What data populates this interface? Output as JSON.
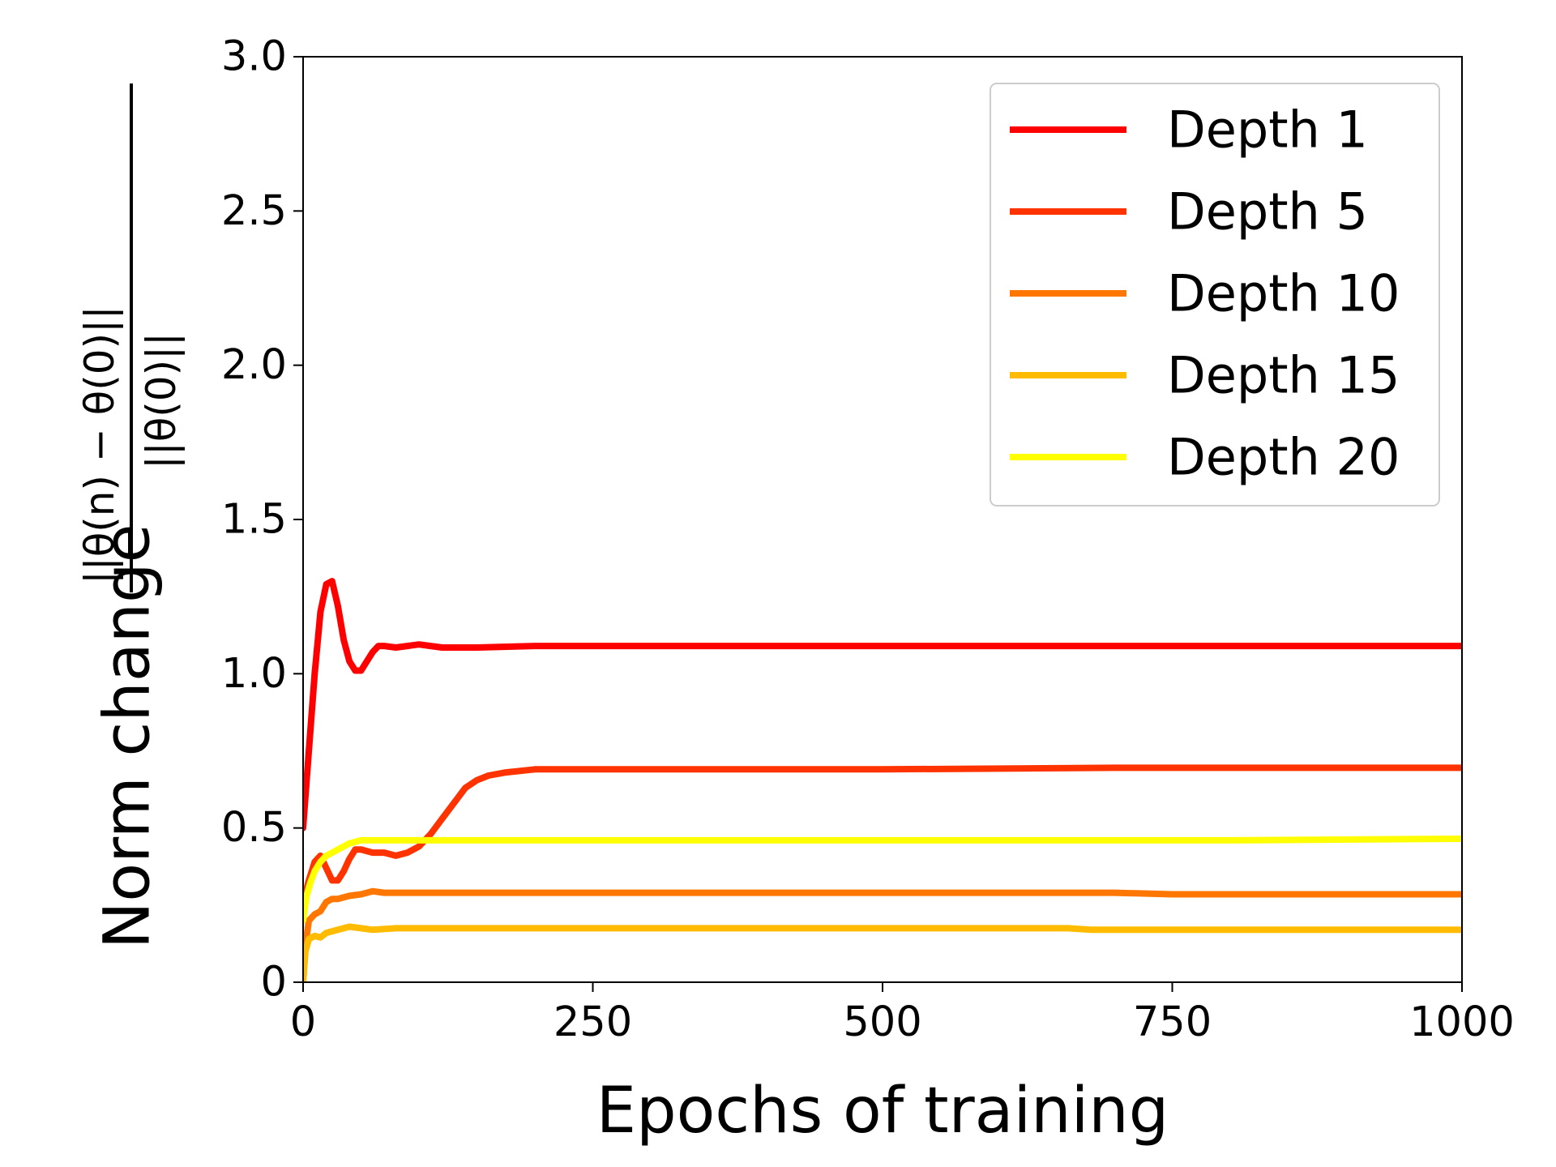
{
  "chart_data": {
    "type": "line",
    "xlabel": "Epochs of training",
    "ylabel_prefix": "Norm change",
    "ylabel_numerator": "||θ(n) − θ(0)||",
    "ylabel_denominator": "||θ(0)||",
    "xlim": [
      0,
      1000
    ],
    "ylim": [
      0,
      3.0
    ],
    "xticks": [
      0,
      250,
      500,
      750,
      1000
    ],
    "xtick_labels": [
      "0",
      "250",
      "500",
      "750",
      "1000"
    ],
    "yticks": [
      0,
      0.5,
      1.0,
      1.5,
      2.0,
      2.5,
      3.0
    ],
    "ytick_labels": [
      "0",
      "0.5",
      "1.0",
      "1.5",
      "2.0",
      "2.5",
      "3.0"
    ],
    "grid": false,
    "legend_position": "top-right",
    "series": [
      {
        "name": "Depth 1",
        "color": "#ff0000",
        "points": [
          [
            0,
            0.5
          ],
          [
            5,
            0.75
          ],
          [
            10,
            1.0
          ],
          [
            15,
            1.2
          ],
          [
            20,
            1.29
          ],
          [
            25,
            1.3
          ],
          [
            30,
            1.22
          ],
          [
            35,
            1.11
          ],
          [
            40,
            1.04
          ],
          [
            45,
            1.01
          ],
          [
            50,
            1.01
          ],
          [
            55,
            1.04
          ],
          [
            60,
            1.07
          ],
          [
            65,
            1.09
          ],
          [
            70,
            1.09
          ],
          [
            80,
            1.085
          ],
          [
            90,
            1.09
          ],
          [
            100,
            1.095
          ],
          [
            110,
            1.09
          ],
          [
            120,
            1.085
          ],
          [
            150,
            1.085
          ],
          [
            200,
            1.09
          ],
          [
            400,
            1.09
          ],
          [
            600,
            1.09
          ],
          [
            800,
            1.09
          ],
          [
            1000,
            1.09
          ]
        ]
      },
      {
        "name": "Depth 5",
        "color": "#ff3300",
        "points": [
          [
            0,
            0.26
          ],
          [
            5,
            0.33
          ],
          [
            10,
            0.39
          ],
          [
            15,
            0.41
          ],
          [
            20,
            0.37
          ],
          [
            25,
            0.33
          ],
          [
            30,
            0.33
          ],
          [
            35,
            0.36
          ],
          [
            40,
            0.4
          ],
          [
            45,
            0.43
          ],
          [
            50,
            0.43
          ],
          [
            60,
            0.42
          ],
          [
            70,
            0.42
          ],
          [
            80,
            0.41
          ],
          [
            90,
            0.42
          ],
          [
            100,
            0.44
          ],
          [
            110,
            0.48
          ],
          [
            120,
            0.53
          ],
          [
            130,
            0.58
          ],
          [
            140,
            0.63
          ],
          [
            150,
            0.655
          ],
          [
            160,
            0.67
          ],
          [
            175,
            0.68
          ],
          [
            200,
            0.69
          ],
          [
            300,
            0.69
          ],
          [
            500,
            0.69
          ],
          [
            700,
            0.695
          ],
          [
            1000,
            0.695
          ]
        ]
      },
      {
        "name": "Depth 10",
        "color": "#ff7700",
        "points": [
          [
            0,
            0.0
          ],
          [
            2,
            0.12
          ],
          [
            5,
            0.2
          ],
          [
            10,
            0.22
          ],
          [
            15,
            0.23
          ],
          [
            20,
            0.26
          ],
          [
            25,
            0.27
          ],
          [
            30,
            0.27
          ],
          [
            40,
            0.28
          ],
          [
            50,
            0.285
          ],
          [
            60,
            0.295
          ],
          [
            70,
            0.29
          ],
          [
            100,
            0.29
          ],
          [
            200,
            0.29
          ],
          [
            400,
            0.29
          ],
          [
            600,
            0.29
          ],
          [
            700,
            0.29
          ],
          [
            750,
            0.285
          ],
          [
            900,
            0.285
          ],
          [
            1000,
            0.285
          ]
        ]
      },
      {
        "name": "Depth 15",
        "color": "#ffbb00",
        "points": [
          [
            0,
            0.0
          ],
          [
            2,
            0.1
          ],
          [
            5,
            0.14
          ],
          [
            10,
            0.15
          ],
          [
            15,
            0.145
          ],
          [
            20,
            0.16
          ],
          [
            30,
            0.17
          ],
          [
            40,
            0.18
          ],
          [
            50,
            0.175
          ],
          [
            60,
            0.17
          ],
          [
            80,
            0.175
          ],
          [
            100,
            0.175
          ],
          [
            300,
            0.175
          ],
          [
            500,
            0.175
          ],
          [
            660,
            0.175
          ],
          [
            680,
            0.17
          ],
          [
            800,
            0.17
          ],
          [
            1000,
            0.17
          ]
        ]
      },
      {
        "name": "Depth 20",
        "color": "#ffff00",
        "points": [
          [
            0,
            0.2
          ],
          [
            3,
            0.28
          ],
          [
            6,
            0.32
          ],
          [
            10,
            0.36
          ],
          [
            15,
            0.39
          ],
          [
            20,
            0.41
          ],
          [
            25,
            0.42
          ],
          [
            30,
            0.43
          ],
          [
            35,
            0.44
          ],
          [
            40,
            0.45
          ],
          [
            45,
            0.455
          ],
          [
            50,
            0.46
          ],
          [
            60,
            0.46
          ],
          [
            80,
            0.46
          ],
          [
            200,
            0.46
          ],
          [
            500,
            0.46
          ],
          [
            800,
            0.46
          ],
          [
            1000,
            0.465
          ]
        ]
      }
    ]
  }
}
